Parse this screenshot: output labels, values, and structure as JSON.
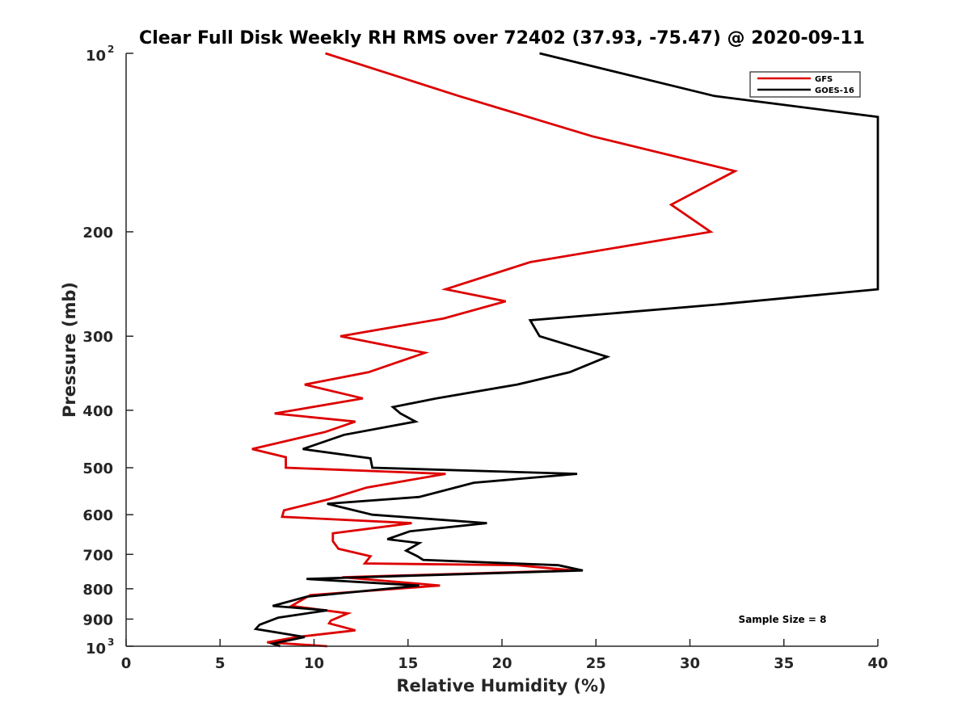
{
  "chart_data": {
    "type": "line",
    "title": "Clear Full Disk Weekly RH RMS over 72402 (37.93, -75.47) @ 2020-09-11",
    "xlabel": "Relative Humidity (%)",
    "ylabel": "Pressure (mb)",
    "xlim": [
      0,
      40
    ],
    "ylim": [
      100,
      1000
    ],
    "y_scale": "log",
    "y_reversed": true,
    "grid": false,
    "x_ticks": [
      0,
      5,
      10,
      15,
      20,
      25,
      30,
      35,
      40
    ],
    "x_tick_labels": [
      "0",
      "5",
      "10",
      "15",
      "20",
      "25",
      "30",
      "35",
      "40"
    ],
    "y_ticks": [
      {
        "value": 100,
        "base": "10",
        "exp": "2",
        "label": ""
      },
      {
        "value": 200,
        "label": "200"
      },
      {
        "value": 300,
        "label": "300"
      },
      {
        "value": 400,
        "label": "400"
      },
      {
        "value": 500,
        "label": "500"
      },
      {
        "value": 600,
        "label": "600"
      },
      {
        "value": 700,
        "label": "700"
      },
      {
        "value": 800,
        "label": "800"
      },
      {
        "value": 900,
        "label": "900"
      },
      {
        "value": 1000,
        "base": "10",
        "exp": "3",
        "label": ""
      }
    ],
    "legend_position": "top-right",
    "annotation": "Sample Size = 8",
    "series": [
      {
        "name": "GFS",
        "color": "#dd0000",
        "points": [
          [
            10.6,
            100
          ],
          [
            17.7,
            118
          ],
          [
            24.8,
            138
          ],
          [
            32.4,
            158
          ],
          [
            29.0,
            180
          ],
          [
            31.1,
            200
          ],
          [
            21.5,
            225
          ],
          [
            17.0,
            250
          ],
          [
            20.2,
            262
          ],
          [
            16.9,
            280
          ],
          [
            11.4,
            300
          ],
          [
            15.9,
            320
          ],
          [
            12.9,
            345
          ],
          [
            9.5,
            362
          ],
          [
            12.6,
            382
          ],
          [
            7.9,
            405
          ],
          [
            12.2,
            418
          ],
          [
            10.6,
            435
          ],
          [
            6.7,
            465
          ],
          [
            8.5,
            480
          ],
          [
            8.5,
            500
          ],
          [
            17.0,
            512
          ],
          [
            12.8,
            540
          ],
          [
            10.8,
            565
          ],
          [
            8.4,
            590
          ],
          [
            8.3,
            605
          ],
          [
            15.2,
            620
          ],
          [
            11.0,
            645
          ],
          [
            11.0,
            665
          ],
          [
            11.3,
            685
          ],
          [
            13.0,
            705
          ],
          [
            12.7,
            725
          ],
          [
            20.8,
            730
          ],
          [
            23.8,
            745
          ],
          [
            11.5,
            765
          ],
          [
            16.7,
            790
          ],
          [
            9.8,
            820
          ],
          [
            8.8,
            855
          ],
          [
            11.8,
            880
          ],
          [
            10.9,
            905
          ],
          [
            10.8,
            915
          ],
          [
            12.2,
            940
          ],
          [
            9.1,
            965
          ],
          [
            7.5,
            985
          ],
          [
            10.7,
            1000
          ]
        ]
      },
      {
        "name": "GOES-16",
        "color": "#000000",
        "points": [
          [
            22.0,
            100
          ],
          [
            31.3,
            118
          ],
          [
            40.0,
            128
          ],
          [
            40.0,
            250
          ],
          [
            31.6,
            265
          ],
          [
            21.5,
            282
          ],
          [
            22.0,
            300
          ],
          [
            25.6,
            325
          ],
          [
            23.6,
            345
          ],
          [
            20.8,
            362
          ],
          [
            16.5,
            382
          ],
          [
            14.2,
            395
          ],
          [
            14.6,
            405
          ],
          [
            15.4,
            418
          ],
          [
            11.6,
            440
          ],
          [
            9.4,
            465
          ],
          [
            13.0,
            482
          ],
          [
            13.1,
            500
          ],
          [
            24.0,
            512
          ],
          [
            18.5,
            530
          ],
          [
            15.6,
            560
          ],
          [
            10.7,
            575
          ],
          [
            13.1,
            600
          ],
          [
            19.2,
            620
          ],
          [
            15.1,
            640
          ],
          [
            13.9,
            660
          ],
          [
            15.6,
            670
          ],
          [
            14.9,
            690
          ],
          [
            15.5,
            705
          ],
          [
            15.8,
            715
          ],
          [
            23.0,
            730
          ],
          [
            24.3,
            745
          ],
          [
            9.6,
            770
          ],
          [
            15.6,
            790
          ],
          [
            9.6,
            825
          ],
          [
            7.8,
            855
          ],
          [
            10.7,
            870
          ],
          [
            8.1,
            895
          ],
          [
            7.1,
            920
          ],
          [
            6.9,
            935
          ],
          [
            9.5,
            965
          ],
          [
            7.8,
            990
          ],
          [
            8.2,
            1000
          ]
        ]
      }
    ]
  }
}
